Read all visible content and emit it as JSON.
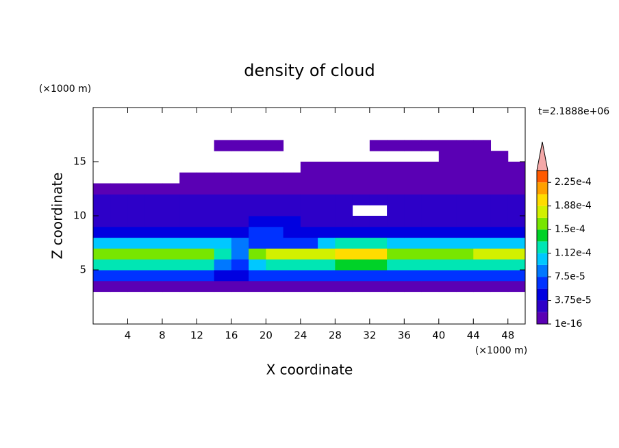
{
  "chart_data": {
    "type": "contour",
    "title": "density of cloud",
    "xlabel": "X coordinate",
    "ylabel": "Z coordinate",
    "x_unit": "(×1000 m)",
    "y_unit": "(×1000 m)",
    "time_label": "t=2.1888e+06",
    "xlim": [
      0,
      50
    ],
    "ylim": [
      0,
      20
    ],
    "xticks": [
      4,
      8,
      12,
      16,
      20,
      24,
      28,
      32,
      36,
      40,
      44,
      48
    ],
    "yticks": [
      5,
      10,
      15
    ],
    "x": [
      1,
      3,
      5,
      7,
      9,
      11,
      13,
      15,
      17,
      19,
      21,
      23,
      25,
      27,
      29,
      31,
      33,
      35,
      37,
      39,
      41,
      43,
      45,
      47,
      49
    ],
    "y": [
      3.5,
      4.5,
      5.5,
      6.5,
      7.5,
      8.5,
      9.5,
      10.5,
      11.5,
      12.5,
      13.5,
      14.5,
      15.5,
      16.5
    ],
    "z": [
      [
        1e-05,
        1e-05,
        1e-05,
        1e-05,
        1e-05,
        1e-05,
        1e-05,
        1e-05,
        1e-05,
        1e-05,
        1e-05,
        1e-05,
        1e-05,
        1e-05,
        1e-05,
        1e-05,
        1e-05,
        1e-05,
        1e-05,
        1e-05,
        1e-05,
        1e-05,
        1e-05,
        1e-05,
        1e-05
      ],
      [
        7e-05,
        7e-05,
        7e-05,
        7e-05,
        7e-05,
        7e-05,
        7e-05,
        5e-05,
        5e-05,
        7e-05,
        7e-05,
        7e-05,
        7e-05,
        7e-05,
        7e-05,
        7e-05,
        7e-05,
        7e-05,
        7e-05,
        7e-05,
        7e-05,
        7e-05,
        7e-05,
        7e-05,
        7e-05
      ],
      [
        0.00012,
        0.00012,
        0.00012,
        0.00012,
        0.00012,
        0.00012,
        0.00012,
        9e-05,
        6e-05,
        0.00011,
        0.00013,
        0.00013,
        0.00013,
        0.00013,
        0.00014,
        0.00014,
        0.00014,
        0.00012,
        0.00013,
        0.00013,
        0.00013,
        0.00013,
        0.00013,
        0.00013,
        0.00013
      ],
      [
        0.00016,
        0.00016,
        0.00016,
        0.00016,
        0.00016,
        0.00016,
        0.00016,
        0.00013,
        9e-05,
        0.00015,
        0.00017,
        0.00017,
        0.00017,
        0.00017,
        0.000195,
        0.000195,
        0.000195,
        0.00015,
        0.00016,
        0.00016,
        0.00016,
        0.00016,
        0.00017,
        0.00017,
        0.00017
      ],
      [
        0.00011,
        0.00011,
        0.00011,
        0.00011,
        0.00011,
        0.00011,
        0.00011,
        0.0001,
        8e-05,
        6e-05,
        6e-05,
        6e-05,
        6e-05,
        0.0001,
        0.00013,
        0.00013,
        0.00013,
        0.00011,
        0.00011,
        0.00011,
        0.00011,
        0.00011,
        0.0001,
        0.0001,
        0.0001
      ],
      [
        5e-05,
        5e-05,
        5e-05,
        5e-05,
        5e-05,
        5e-05,
        5e-05,
        5e-05,
        5e-05,
        6e-05,
        6e-05,
        5e-05,
        5e-05,
        5e-05,
        5e-05,
        5e-05,
        5e-05,
        5e-05,
        5e-05,
        5e-05,
        5e-05,
        5e-05,
        5e-05,
        5e-05,
        5e-05
      ],
      [
        3e-05,
        3e-05,
        3e-05,
        3e-05,
        3e-05,
        3e-05,
        3e-05,
        3e-05,
        3e-05,
        5e-05,
        5e-05,
        5e-05,
        3e-05,
        3e-05,
        3e-05,
        3e-05,
        3e-05,
        3e-05,
        3e-05,
        3e-05,
        3e-05,
        3e-05,
        3e-05,
        3e-05,
        3e-05
      ],
      [
        2e-05,
        2e-05,
        2e-05,
        2e-05,
        2e-05,
        2e-05,
        2e-05,
        2e-05,
        2e-05,
        2e-05,
        2e-05,
        2e-05,
        2e-05,
        2e-05,
        2e-05,
        null,
        null,
        2e-05,
        2e-05,
        2e-05,
        2e-05,
        2e-05,
        2e-05,
        2e-05,
        2e-05
      ],
      [
        2.5e-05,
        2.5e-05,
        2.5e-05,
        2.5e-05,
        2.5e-05,
        2.5e-05,
        2.5e-05,
        2.5e-05,
        2.5e-05,
        2.5e-05,
        2.5e-05,
        2.5e-05,
        2.5e-05,
        2.5e-05,
        2.5e-05,
        2.5e-05,
        2.5e-05,
        2.5e-05,
        2.5e-05,
        2.5e-05,
        2.5e-05,
        2.5e-05,
        2.5e-05,
        2.5e-05,
        2.5e-05
      ],
      [
        1.2e-05,
        1.2e-05,
        1.2e-05,
        1.2e-05,
        1.2e-05,
        1.2e-05,
        1.2e-05,
        1.2e-05,
        1.2e-05,
        1.2e-05,
        1.2e-05,
        1.2e-05,
        1.2e-05,
        1.2e-05,
        1.2e-05,
        1.2e-05,
        1.2e-05,
        1.2e-05,
        1.2e-05,
        1.2e-05,
        1.2e-05,
        1.2e-05,
        1.2e-05,
        1.2e-05,
        1.2e-05
      ],
      [
        null,
        null,
        null,
        null,
        null,
        5e-06,
        5e-06,
        5e-06,
        5e-06,
        5e-06,
        5e-06,
        5e-06,
        5e-06,
        5e-06,
        5e-06,
        5e-06,
        5e-06,
        5e-06,
        5e-06,
        5e-06,
        5e-06,
        5e-06,
        5e-06,
        5e-06,
        5e-06
      ],
      [
        null,
        null,
        null,
        null,
        null,
        null,
        null,
        null,
        null,
        null,
        null,
        null,
        5e-06,
        5e-06,
        5e-06,
        5e-06,
        5e-06,
        5e-06,
        5e-06,
        5e-06,
        5e-06,
        5e-06,
        5e-06,
        5e-06,
        5e-06
      ],
      [
        null,
        null,
        null,
        null,
        null,
        null,
        null,
        null,
        null,
        null,
        null,
        null,
        null,
        null,
        null,
        null,
        null,
        null,
        null,
        null,
        5e-06,
        5e-06,
        5e-06,
        5e-06,
        null
      ],
      [
        null,
        null,
        null,
        null,
        null,
        null,
        null,
        5e-06,
        5e-06,
        5e-06,
        5e-06,
        null,
        null,
        null,
        null,
        null,
        5e-06,
        5e-06,
        5e-06,
        5e-06,
        5e-06,
        5e-06,
        5e-06,
        null,
        null
      ]
    ],
    "levels": [
      1e-16,
      1.875e-05,
      3.75e-05,
      5.625e-05,
      7.5e-05,
      9.375e-05,
      0.0001125,
      0.00013125,
      0.00015,
      0.00016875,
      0.0001875,
      0.00020625,
      0.000225,
      0.00024375
    ],
    "colors": [
      "#5a00b4",
      "#2d00c8",
      "#0000e0",
      "#0032ff",
      "#0078ff",
      "#00c8ff",
      "#00e6b4",
      "#00d228",
      "#78e600",
      "#d2f000",
      "#ffdc00",
      "#ffa000",
      "#ff5a00",
      "#f01e1e"
    ],
    "extend_color": "#f4a8a8",
    "cbar_ticks": [
      1e-16,
      {
        "value": 3.75e-05,
        "label": "3.75e-5"
      },
      {
        "value": 7.5e-05,
        "label": "7.5e-5"
      },
      {
        "value": 0.0001125,
        "label": "1.12e-4"
      },
      {
        "value": 0.00015,
        "label": "1.5e-4"
      },
      {
        "value": 0.0001875,
        "label": "1.88e-4"
      },
      {
        "value": 0.000225,
        "label": "2.25e-4"
      }
    ]
  }
}
